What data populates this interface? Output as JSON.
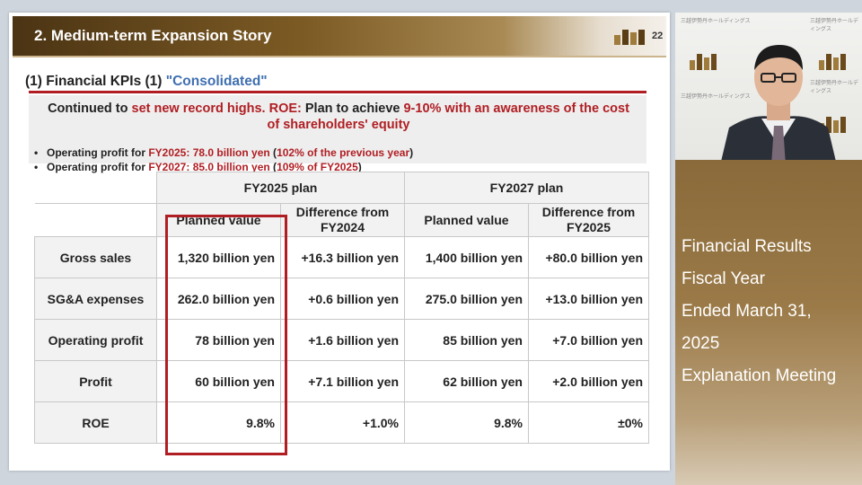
{
  "slide": {
    "section_title": "2. Medium-term Expansion Story",
    "page_number": "22",
    "kpi_title_prefix": "(1) Financial KPIs (1) ",
    "kpi_title_consolidated": "\"Consolidated\"",
    "headline": {
      "p1": "Continued to ",
      "p2": "set new record highs. ROE:",
      "p3": " Plan to achieve ",
      "p4": "9-10% with an awareness of the cost",
      "p5": "of shareholders' equity"
    },
    "bullets": [
      {
        "p1": "Operating profit for ",
        "p2": "FY2025: 78.0 billion yen",
        "p3": " (",
        "p4": "102% of the previous year",
        "p5": ")"
      },
      {
        "p1": "Operating profit for ",
        "p2": "FY2027: 85.0 billion yen",
        "p3": " (",
        "p4": "109% of FY2025",
        "p5": ")"
      }
    ],
    "table": {
      "group_headers": [
        "FY2025 plan",
        "FY2027 plan"
      ],
      "sub_headers": [
        "Planned value",
        "Difference from FY2024",
        "Planned value",
        "Difference from FY2025"
      ],
      "rows": [
        {
          "label": "Gross sales",
          "cells": [
            "1,320 billion yen",
            "+16.3 billion yen",
            "1,400 billion yen",
            "+80.0 billion yen"
          ]
        },
        {
          "label": "SG&A expenses",
          "cells": [
            "262.0 billion yen",
            "+0.6 billion yen",
            "275.0 billion yen",
            "+13.0 billion yen"
          ]
        },
        {
          "label": "Operating profit",
          "cells": [
            "78 billion yen",
            "+1.6 billion yen",
            "85 billion yen",
            "+7.0 billion yen"
          ]
        },
        {
          "label": "Profit",
          "cells": [
            "60 billion yen",
            "+7.1 billion yen",
            "62 billion yen",
            "+2.0 billion yen"
          ]
        },
        {
          "label": "ROE",
          "cells": [
            "9.8%",
            "+1.0%",
            "9.8%",
            "±0%"
          ]
        }
      ]
    }
  },
  "info_panel": {
    "lines": [
      "Financial Results",
      "Fiscal Year",
      "Ended March 31,",
      "2025",
      "Explanation Meeting"
    ]
  },
  "colors": {
    "accent_red": "#b01e23",
    "consolidated_blue": "#3f6fb0",
    "brand_brown": "#7d5b24"
  }
}
